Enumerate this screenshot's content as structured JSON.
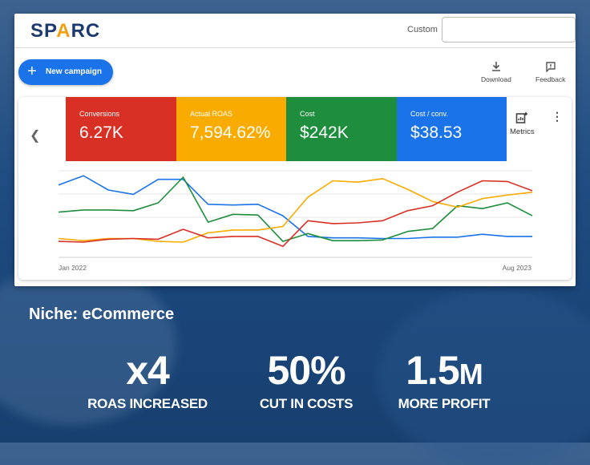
{
  "header": {
    "logo_text_left": "SP",
    "logo_text_accent": "A",
    "logo_text_right": "RC",
    "date_label": "Custom"
  },
  "toolbar": {
    "new_campaign_label": "New campaign",
    "download_label": "Download",
    "feedback_label": "Feedback"
  },
  "metrics_tiles": [
    {
      "title": "Conversions",
      "value": "6.27K",
      "color": "#d93025"
    },
    {
      "title": "Actual ROAS",
      "value": "7,594.62%",
      "color": "#f9ab00"
    },
    {
      "title": "Cost",
      "value": "$242K",
      "color": "#1e8e3e"
    },
    {
      "title": "Cost / conv.",
      "value": "$38.53",
      "color": "#1a73e8"
    }
  ],
  "metrics_button_label": "Metrics",
  "chart_data": {
    "type": "line",
    "x_start_label": "Jan 2022",
    "x_end_label": "Aug 2023",
    "series": [
      {
        "color": "#1a73e8",
        "values": [
          0.8,
          0.93,
          0.73,
          0.67,
          0.88,
          0.88,
          0.53,
          0.52,
          0.53,
          0.37,
          0.08,
          0.06,
          0.06,
          0.05,
          0.05,
          0.07,
          0.07,
          0.11,
          0.08,
          0.08
        ]
      },
      {
        "color": "#1e8e3e",
        "values": [
          0.42,
          0.45,
          0.45,
          0.44,
          0.55,
          0.91,
          0.28,
          0.39,
          0.38,
          0.01,
          0.12,
          0.02,
          0.02,
          0.03,
          0.15,
          0.19,
          0.51,
          0.47,
          0.55,
          0.37
        ]
      },
      {
        "color": "#f9ab00",
        "values": [
          0.05,
          0.02,
          0.05,
          0.05,
          0.01,
          0.0,
          0.13,
          0.17,
          0.17,
          0.22,
          0.63,
          0.86,
          0.84,
          0.89,
          0.74,
          0.57,
          0.49,
          0.61,
          0.66,
          0.7
        ]
      },
      {
        "color": "#d93025",
        "values": [
          0.01,
          0.0,
          0.04,
          0.05,
          0.04,
          0.18,
          0.06,
          0.08,
          0.08,
          -0.06,
          0.3,
          0.26,
          0.27,
          0.3,
          0.44,
          0.51,
          0.7,
          0.86,
          0.85,
          0.72
        ]
      }
    ]
  },
  "bottom": {
    "niche": "Niche: eCommerce",
    "stats": [
      {
        "big": "x4",
        "suffix": "",
        "caption": "ROAS INCREASED"
      },
      {
        "big": "50%",
        "suffix": "",
        "caption": "CUT IN COSTS"
      },
      {
        "big": "1.5",
        "suffix": "M",
        "caption": "MORE PROFIT"
      }
    ]
  }
}
